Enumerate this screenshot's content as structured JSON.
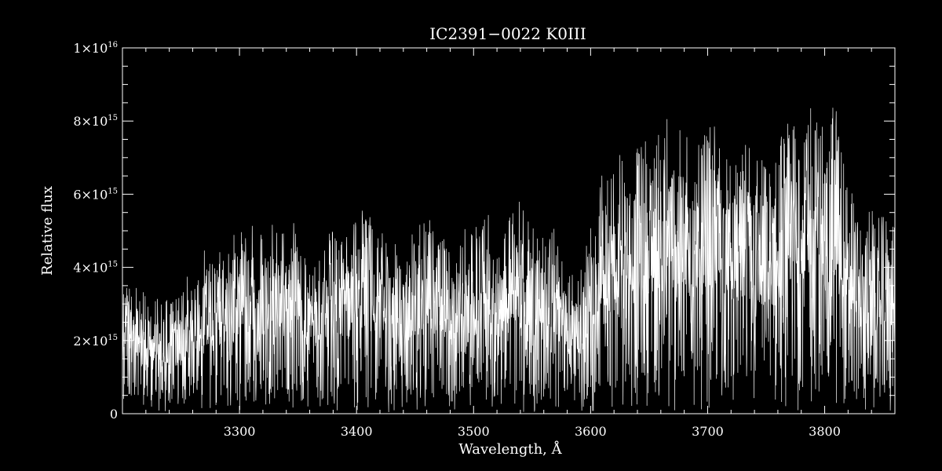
{
  "chart_data": {
    "type": "line",
    "title": "IC2391−0022   K0III",
    "xlabel": "Wavelength, Å",
    "ylabel": "Relative flux",
    "xlim": [
      3200,
      3860
    ],
    "ylim": [
      0,
      1e+16
    ],
    "x_ticks": [
      3300,
      3400,
      3500,
      3600,
      3700,
      3800
    ],
    "x_tick_labels": [
      "3300",
      "3400",
      "3500",
      "3600",
      "3700",
      "3800"
    ],
    "y_ticks": [
      {
        "value": 0,
        "mantissa": "0",
        "exponent": ""
      },
      {
        "value": 2000000000000000.0,
        "mantissa": "2×10",
        "exponent": "15"
      },
      {
        "value": 4000000000000000.0,
        "mantissa": "4×10",
        "exponent": "15"
      },
      {
        "value": 6000000000000000.0,
        "mantissa": "6×10",
        "exponent": "15"
      },
      {
        "value": 8000000000000000.0,
        "mantissa": "8×10",
        "exponent": "15"
      },
      {
        "value": 1e+16,
        "mantissa": "1×10",
        "exponent": "16"
      }
    ],
    "grid": false,
    "colors": {
      "background": "#000000",
      "foreground": "#ffffff"
    },
    "series": [
      {
        "x": [
          3200,
          3210,
          3220,
          3230,
          3240,
          3250,
          3260,
          3270,
          3280,
          3290,
          3300,
          3310,
          3320,
          3330,
          3340,
          3350,
          3360,
          3370,
          3380,
          3390,
          3400,
          3410,
          3420,
          3430,
          3440,
          3450,
          3460,
          3470,
          3480,
          3490,
          3500,
          3510,
          3520,
          3530,
          3540,
          3550,
          3560,
          3570,
          3580,
          3590,
          3600,
          3610,
          3620,
          3630,
          3640,
          3650,
          3660,
          3670,
          3680,
          3690,
          3700,
          3710,
          3720,
          3730,
          3740,
          3750,
          3760,
          3770,
          3780,
          3790,
          3800,
          3810,
          3820,
          3830,
          3840,
          3850,
          3860
        ],
        "y": [
          2800000000000000.0,
          3200000000000000.0,
          2600000000000000.0,
          2800000000000000.0,
          2500000000000000.0,
          2700000000000000.0,
          3400000000000000.0,
          3800000000000000.0,
          3600000000000000.0,
          3900000000000000.0,
          4200000000000000.0,
          4500000000000000.0,
          4000000000000000.0,
          4300000000000000.0,
          4100000000000000.0,
          4600000000000000.0,
          3200000000000000.0,
          4000000000000000.0,
          4200000000000000.0,
          3800000000000000.0,
          4800000000000000.0,
          4500000000000000.0,
          4300000000000000.0,
          4000000000000000.0,
          3500000000000000.0,
          4200000000000000.0,
          4400000000000000.0,
          4300000000000000.0,
          3600000000000000.0,
          4600000000000000.0,
          4200000000000000.0,
          4700000000000000.0,
          3800000000000000.0,
          4400000000000000.0,
          4900000000000000.0,
          4600000000000000.0,
          4000000000000000.0,
          4200000000000000.0,
          3300000000000000.0,
          3000000000000000.0,
          4400000000000000.0,
          5400000000000000.0,
          5600000000000000.0,
          6000000000000000.0,
          6200000000000000.0,
          6400000000000000.0,
          6600000000000000.0,
          6800000000000000.0,
          6300000000000000.0,
          6400000000000000.0,
          6600000000000000.0,
          6500000000000000.0,
          5800000000000000.0,
          6000000000000000.0,
          6200000000000000.0,
          5600000000000000.0,
          6000000000000000.0,
          6800000000000000.0,
          7200000000000000.0,
          7000000000000000.0,
          6500000000000000.0,
          7400000000000000.0,
          5200000000000000.0,
          4400000000000000.0,
          4600000000000000.0,
          4500000000000000.0,
          4300000000000000.0
        ]
      }
    ]
  }
}
